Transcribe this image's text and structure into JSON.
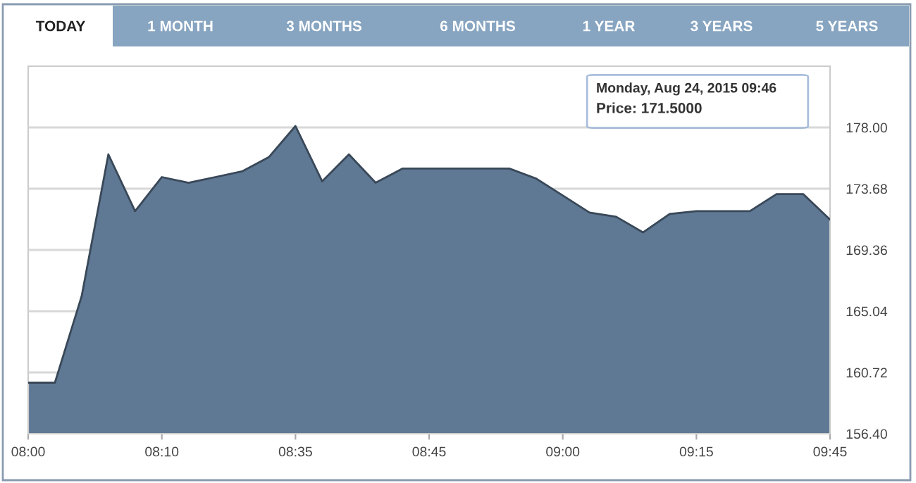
{
  "chart_data": [
    {
      "type": "other",
      "annotations": [
        "TODAY",
        "1 MONTH",
        "3 MONTHS",
        "6 MONTHS",
        "1 YEAR",
        "3 YEARS",
        "5 YEARS"
      ]
    },
    {
      "type": "area",
      "categories": [
        "08:00",
        null,
        null,
        null,
        null,
        "08:10",
        null,
        null,
        null,
        null,
        "08:35",
        null,
        null,
        null,
        null,
        "08:45",
        null,
        null,
        null,
        null,
        "09:00",
        null,
        null,
        null,
        null,
        "09:15",
        null,
        null,
        null,
        null,
        "09:45"
      ],
      "series": [
        {
          "color": "#5f7893",
          "values": [
            160.0,
            160.0,
            166.1,
            176.1,
            172.1,
            174.5,
            174.1,
            174.5,
            174.9,
            175.9,
            178.1,
            174.2,
            176.1,
            174.1,
            175.1,
            175.1,
            175.1,
            175.1,
            175.1,
            174.4,
            173.2,
            172.0,
            171.7,
            170.6,
            171.9,
            172.1,
            172.1,
            172.1,
            173.3,
            173.3,
            171.5
          ]
        }
      ],
      "ylim": [
        156.4,
        182.32
      ],
      "yticks": [
        {
          "value": 156.4,
          "label": "156.40"
        },
        {
          "value": 160.72,
          "label": "160.72"
        },
        {
          "value": 165.04,
          "label": "165.04"
        },
        {
          "value": 169.36,
          "label": "169.36"
        },
        {
          "value": 173.68,
          "label": "173.68"
        },
        {
          "value": 178.0,
          "label": "178.00"
        }
      ],
      "grid": "y",
      "annotations": [
        "Monday, Aug 24, 2015 09:46",
        "Price: 171.5000"
      ]
    }
  ]
}
